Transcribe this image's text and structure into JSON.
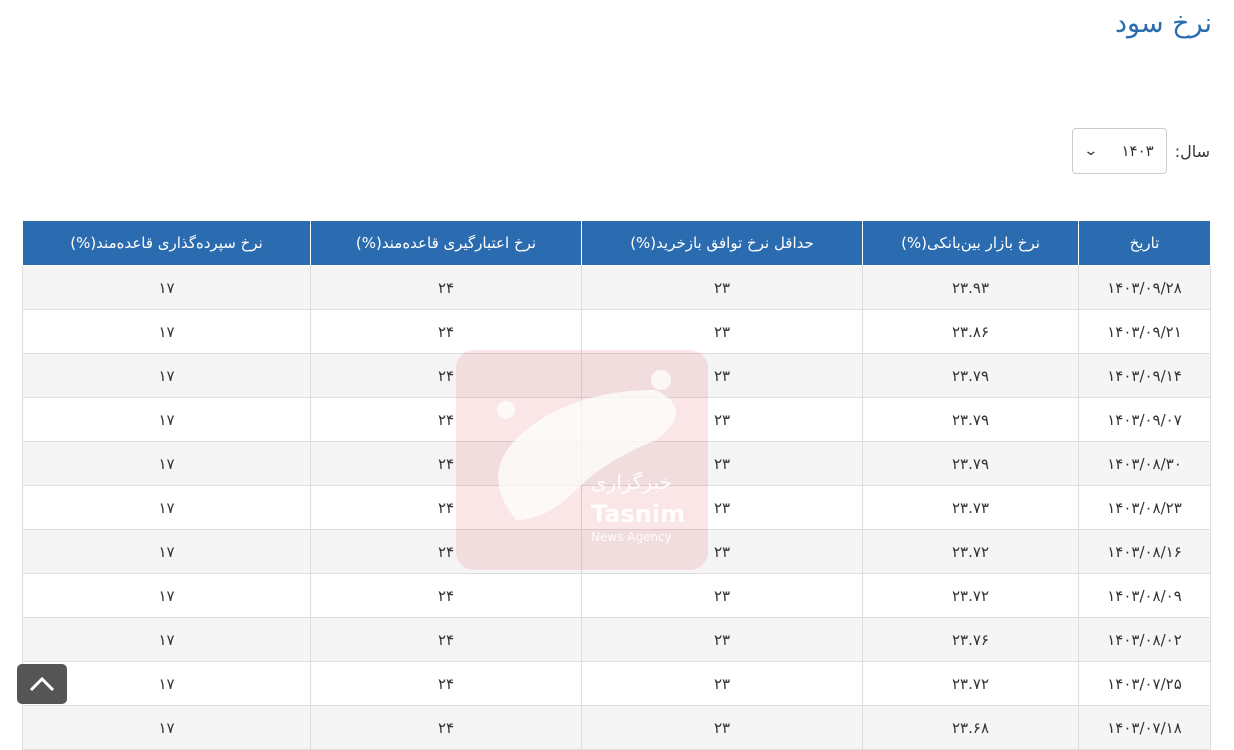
{
  "page_title": "نرخ سود",
  "year_filter": {
    "label": "سال:",
    "value": "۱۴۰۳"
  },
  "table": {
    "headers": [
      "تاریخ",
      "نرخ بازار بین‌بانکی(%)",
      "حداقل نرخ توافق بازخرید(%)",
      "نرخ اعتبارگیری قاعده‌مند(%)",
      "نرخ سپرده‌گذاری قاعده‌مند(%)"
    ],
    "rows": [
      [
        "۱۴۰۳/۰۹/۲۸",
        "۲۳.۹۳",
        "۲۳",
        "۲۴",
        "۱۷"
      ],
      [
        "۱۴۰۳/۰۹/۲۱",
        "۲۳.۸۶",
        "۲۳",
        "۲۴",
        "۱۷"
      ],
      [
        "۱۴۰۳/۰۹/۱۴",
        "۲۳.۷۹",
        "۲۳",
        "۲۴",
        "۱۷"
      ],
      [
        "۱۴۰۳/۰۹/۰۷",
        "۲۳.۷۹",
        "۲۳",
        "۲۴",
        "۱۷"
      ],
      [
        "۱۴۰۳/۰۸/۳۰",
        "۲۳.۷۹",
        "۲۳",
        "۲۴",
        "۱۷"
      ],
      [
        "۱۴۰۳/۰۸/۲۳",
        "۲۳.۷۳",
        "۲۳",
        "۲۴",
        "۱۷"
      ],
      [
        "۱۴۰۳/۰۸/۱۶",
        "۲۳.۷۲",
        "۲۳",
        "۲۴",
        "۱۷"
      ],
      [
        "۱۴۰۳/۰۸/۰۹",
        "۲۳.۷۲",
        "۲۳",
        "۲۴",
        "۱۷"
      ],
      [
        "۱۴۰۳/۰۸/۰۲",
        "۲۳.۷۶",
        "۲۳",
        "۲۴",
        "۱۷"
      ],
      [
        "۱۴۰۳/۰۷/۲۵",
        "۲۳.۷۲",
        "۲۳",
        "۲۴",
        "۱۷"
      ],
      [
        "۱۴۰۳/۰۷/۱۸",
        "۲۳.۶۸",
        "۲۳",
        "۲۴",
        "۱۷"
      ]
    ]
  },
  "watermark": {
    "arabic": "خبرگزاری",
    "name": "Tasnim",
    "sub": "News Agency"
  },
  "colors": {
    "header": "#2b6cb0",
    "title": "#2b6cb0"
  },
  "icons": {
    "select": "chevron-down-icon",
    "scroll_top": "chevron-up-icon"
  }
}
